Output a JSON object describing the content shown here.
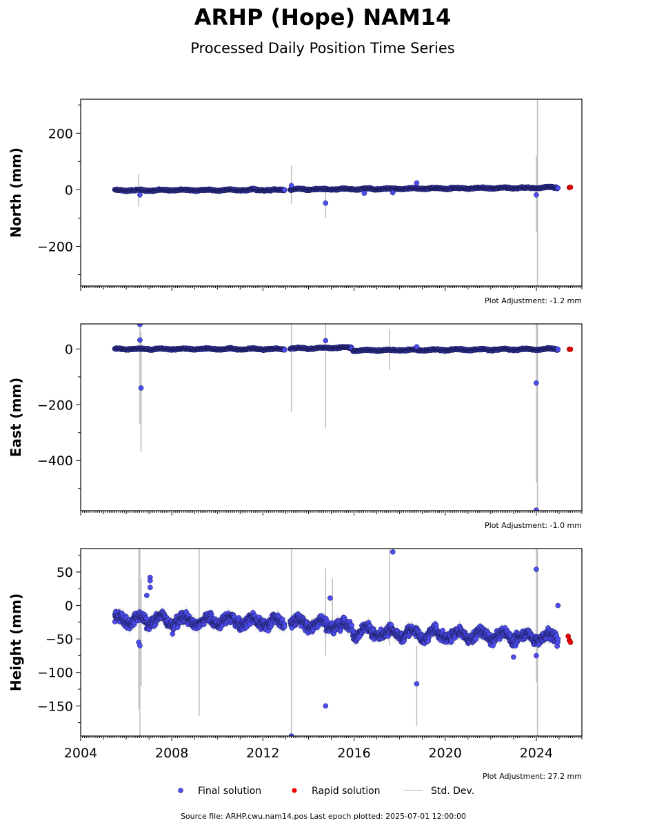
{
  "figure": {
    "title": "ARHP (Hope) NAM14",
    "subtitle": "Processed Daily Position Time Series",
    "footer": "Source file: ARHP.cwu.nam14.pos  Last epoch plotted: 2025-07-01 12:00:00"
  },
  "legend": {
    "placement": "bottom-center",
    "items": [
      {
        "label": "Final solution",
        "color": "#4d4df2",
        "marker": "dot"
      },
      {
        "label": "Rapid solution",
        "color": "#ee0000",
        "marker": "dot"
      },
      {
        "label": "Std. Dev.",
        "color": "#cccccc",
        "marker": "line"
      }
    ]
  },
  "colors": {
    "final": "#4d4df2",
    "final_edge": "#1a1a55",
    "rapid": "#ee0000",
    "stddev": "#bdbdbd",
    "axis": "#000000"
  },
  "chart_data": [
    {
      "type": "scatter",
      "ylabel": "North (mm)",
      "xlim": [
        2004.0,
        2026.0
      ],
      "ylim": [
        -340,
        320
      ],
      "yticks": [
        -200,
        0,
        200
      ],
      "ytick_labels": [
        "−200",
        "0",
        "200"
      ],
      "xticks": [
        2004,
        2008,
        2012,
        2016,
        2020,
        2024
      ],
      "show_xtick_labels": false,
      "adjustment": "Plot Adjustment: -1.2 mm",
      "segments": [
        {
          "start": 2005.5,
          "end": 2012.95,
          "start_y": -2,
          "end_y": 0,
          "noise": 3
        },
        {
          "start": 2013.2,
          "end": 2024.95,
          "start_y": 1,
          "end_y": 8,
          "noise": 3
        }
      ],
      "outliers": [
        {
          "x": 2006.6,
          "y": -18
        },
        {
          "x": 2013.25,
          "y": 15
        },
        {
          "x": 2014.75,
          "y": -47
        },
        {
          "x": 2016.45,
          "y": -12
        },
        {
          "x": 2017.7,
          "y": -10
        },
        {
          "x": 2018.75,
          "y": 24
        },
        {
          "x": 2024.0,
          "y": -18
        }
      ],
      "rapid": [
        {
          "x": 2025.45,
          "y": 8
        },
        {
          "x": 2025.5,
          "y": 9
        }
      ],
      "stddev_bars": [
        {
          "x": 2006.55,
          "lo": -60,
          "hi": 55
        },
        {
          "x": 2013.25,
          "lo": -50,
          "hi": 85
        },
        {
          "x": 2014.75,
          "lo": -100,
          "hi": 5
        },
        {
          "x": 2024.0,
          "lo": -150,
          "hi": 120
        },
        {
          "x": 2024.05,
          "lo": -340,
          "hi": 320
        }
      ]
    },
    {
      "type": "scatter",
      "ylabel": "East (mm)",
      "xlim": [
        2004.0,
        2026.0
      ],
      "ylim": [
        -580,
        90
      ],
      "yticks": [
        -400,
        -200,
        0
      ],
      "ytick_labels": [
        "−400",
        "−200",
        "0"
      ],
      "xticks": [
        2004,
        2008,
        2012,
        2016,
        2020,
        2024
      ],
      "show_xtick_labels": false,
      "adjustment": "Plot Adjustment: -1.0 mm",
      "segments": [
        {
          "start": 2005.5,
          "end": 2012.95,
          "start_y": 0,
          "end_y": 0,
          "noise": 3
        },
        {
          "start": 2013.2,
          "end": 2015.9,
          "start_y": 2,
          "end_y": 5,
          "noise": 3
        },
        {
          "start": 2015.95,
          "end": 2024.95,
          "start_y": -5,
          "end_y": 0,
          "noise": 3
        }
      ],
      "outliers": [
        {
          "x": 2006.6,
          "y": 88
        },
        {
          "x": 2006.6,
          "y": 32
        },
        {
          "x": 2006.65,
          "y": -140
        },
        {
          "x": 2014.75,
          "y": 30
        },
        {
          "x": 2018.75,
          "y": 8
        },
        {
          "x": 2024.0,
          "y": -122
        },
        {
          "x": 2024.0,
          "y": -578
        }
      ],
      "rapid": [
        {
          "x": 2025.45,
          "y": -1
        },
        {
          "x": 2025.5,
          "y": -1
        }
      ],
      "stddev_bars": [
        {
          "x": 2006.6,
          "lo": -270,
          "hi": 90
        },
        {
          "x": 2006.65,
          "lo": -370,
          "hi": 60
        },
        {
          "x": 2013.25,
          "lo": -225,
          "hi": 90
        },
        {
          "x": 2014.75,
          "lo": -285,
          "hi": 90
        },
        {
          "x": 2017.55,
          "lo": -75,
          "hi": 70
        },
        {
          "x": 2024.0,
          "lo": -480,
          "hi": 90
        },
        {
          "x": 2024.05,
          "lo": -580,
          "hi": 90
        }
      ]
    },
    {
      "type": "scatter",
      "ylabel": "Height (mm)",
      "xlim": [
        2004.0,
        2026.0
      ],
      "ylim": [
        -195,
        85
      ],
      "yticks": [
        -150,
        -100,
        -50,
        0,
        50
      ],
      "ytick_labels": [
        "−150",
        "−100",
        "−50",
        "0",
        "50"
      ],
      "xticks": [
        2004,
        2008,
        2012,
        2016,
        2020,
        2024
      ],
      "xtick_labels": [
        "2004",
        "2008",
        "2012",
        "2016",
        "2020",
        "2024"
      ],
      "show_xtick_labels": true,
      "adjustment": "Plot Adjustment: 27.2 mm",
      "segments": [
        {
          "start": 2005.5,
          "end": 2012.95,
          "start_y": -20,
          "end_y": -25,
          "noise": 10
        },
        {
          "start": 2013.2,
          "end": 2015.9,
          "start_y": -25,
          "end_y": -30,
          "noise": 10
        },
        {
          "start": 2015.95,
          "end": 2024.95,
          "start_y": -40,
          "end_y": -48,
          "noise": 10
        }
      ],
      "outliers": [
        {
          "x": 2006.55,
          "y": -55
        },
        {
          "x": 2006.6,
          "y": -60
        },
        {
          "x": 2006.9,
          "y": 15
        },
        {
          "x": 2007.05,
          "y": 42
        },
        {
          "x": 2007.05,
          "y": 37
        },
        {
          "x": 2007.05,
          "y": 27
        },
        {
          "x": 2013.25,
          "y": -195
        },
        {
          "x": 2014.75,
          "y": -150
        },
        {
          "x": 2014.95,
          "y": 11
        },
        {
          "x": 2017.7,
          "y": 80
        },
        {
          "x": 2018.75,
          "y": -117
        },
        {
          "x": 2023.0,
          "y": -77
        },
        {
          "x": 2024.0,
          "y": 54
        },
        {
          "x": 2024.0,
          "y": -75
        },
        {
          "x": 2024.95,
          "y": 0
        }
      ],
      "rapid": [
        {
          "x": 2025.4,
          "y": -46
        },
        {
          "x": 2025.45,
          "y": -52
        },
        {
          "x": 2025.5,
          "y": -55
        }
      ],
      "stddev_bars": [
        {
          "x": 2006.55,
          "lo": -155,
          "hi": 85
        },
        {
          "x": 2006.6,
          "lo": -195,
          "hi": 85
        },
        {
          "x": 2006.65,
          "lo": -120,
          "hi": 40
        },
        {
          "x": 2009.2,
          "lo": -165,
          "hi": 85
        },
        {
          "x": 2013.25,
          "lo": -195,
          "hi": 85
        },
        {
          "x": 2014.75,
          "lo": -75,
          "hi": 55
        },
        {
          "x": 2015.05,
          "lo": -40,
          "hi": 40
        },
        {
          "x": 2017.55,
          "lo": -60,
          "hi": 85
        },
        {
          "x": 2018.75,
          "lo": -180,
          "hi": -60
        },
        {
          "x": 2024.0,
          "lo": -115,
          "hi": 85
        },
        {
          "x": 2024.05,
          "lo": -195,
          "hi": 85
        }
      ]
    }
  ]
}
